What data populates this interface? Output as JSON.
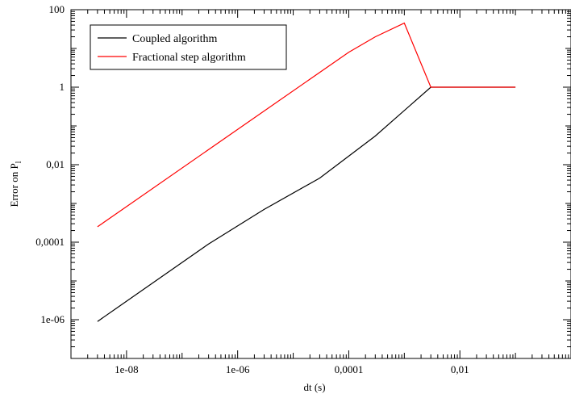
{
  "chart_data": {
    "type": "line",
    "xlabel": "dt (s)",
    "ylabel": "Error on P",
    "ylabel_sub": "l",
    "xscale": "log",
    "yscale": "log",
    "xlim": [
      1e-09,
      1
    ],
    "ylim": [
      1e-07,
      100
    ],
    "x_ticks": [
      {
        "value": 1e-08,
        "label": "1e-08"
      },
      {
        "value": 1e-06,
        "label": "1e-06"
      },
      {
        "value": 0.0001,
        "label": "0,0001"
      },
      {
        "value": 0.01,
        "label": "0,01"
      }
    ],
    "y_ticks": [
      {
        "value": 1e-06,
        "label": "1e-06"
      },
      {
        "value": 0.0001,
        "label": "0,0001"
      },
      {
        "value": 0.01,
        "label": "0,01"
      },
      {
        "value": 1,
        "label": "1"
      },
      {
        "value": 100,
        "label": "100"
      }
    ],
    "grid": false,
    "legend_position": "top-left",
    "series": [
      {
        "name": "Coupled algorithm",
        "color": "#000000",
        "x": [
          3e-09,
          3e-07,
          3e-06,
          3e-05,
          0.0003,
          0.003,
          0.03,
          0.1
        ],
        "y": [
          9e-07,
          9e-05,
          0.0007,
          0.0045,
          0.055,
          1,
          1,
          1
        ]
      },
      {
        "name": "Fractional step algorithm",
        "color": "#ff0000",
        "x": [
          3e-09,
          0.0001,
          0.0003,
          0.001,
          0.003,
          0.03,
          0.1
        ],
        "y": [
          0.00025,
          8,
          20,
          45,
          1,
          1,
          1
        ]
      }
    ]
  }
}
